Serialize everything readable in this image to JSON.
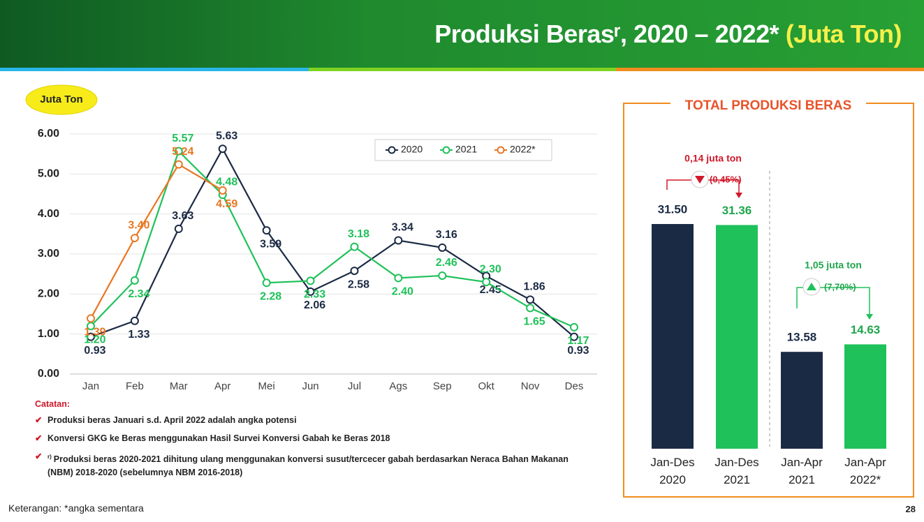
{
  "header": {
    "title": "Produksi Berasʳ, 2020 – 2022*",
    "unit": "(Juta Ton)"
  },
  "chart_data": [
    {
      "type": "line",
      "badge": "Juta Ton",
      "categories": [
        "Jan",
        "Feb",
        "Mar",
        "Apr",
        "Mei",
        "Jun",
        "Jul",
        "Ags",
        "Sep",
        "Okt",
        "Nov",
        "Des"
      ],
      "series": [
        {
          "name": "2020",
          "color": "#1b2a44",
          "values": [
            0.93,
            1.33,
            3.63,
            5.63,
            3.59,
            2.06,
            2.58,
            3.34,
            3.16,
            2.45,
            1.86,
            0.93
          ],
          "value_labels": [
            "0.93",
            "1.33",
            "3.63",
            "5.63",
            "3.59",
            "2.06",
            "2.58",
            "3.34",
            "3.16",
            "2.45",
            "1.86",
            "0.93"
          ]
        },
        {
          "name": "2021",
          "color": "#1fc15a",
          "values": [
            1.2,
            2.34,
            5.57,
            4.48,
            2.28,
            2.33,
            3.18,
            2.4,
            2.46,
            2.3,
            1.65,
            1.17
          ],
          "value_labels": [
            "1.20",
            "2.34",
            "5.57",
            "4.48",
            "2.28",
            "2.33",
            "3.18",
            "2.40",
            "2.46",
            "2.30",
            "1.65",
            "1.17"
          ]
        },
        {
          "name": "2022*",
          "color": "#e87722",
          "values": [
            1.39,
            3.4,
            5.24,
            4.59,
            null,
            null,
            null,
            null,
            null,
            null,
            null,
            null
          ],
          "value_labels": [
            "1.39",
            "3.40",
            "5.24",
            "4.59",
            null,
            null,
            null,
            null,
            null,
            null,
            null,
            null
          ]
        }
      ],
      "ylim": [
        0,
        6
      ],
      "yticks": [
        {
          "value": 0,
          "label": "0.00"
        },
        {
          "value": 1,
          "label": "1.00"
        },
        {
          "value": 2,
          "label": "2.00"
        },
        {
          "value": 3,
          "label": "3.00"
        },
        {
          "value": 4,
          "label": "4.00"
        },
        {
          "value": 5,
          "label": "5.00"
        },
        {
          "value": 6,
          "label": "6.00"
        }
      ],
      "grid": true
    },
    {
      "type": "bar",
      "title": "TOTAL PRODUKSI BERAS",
      "categories": [
        "Jan-Des 2020",
        "Jan-Des 2021",
        "Jan-Apr 2021",
        "Jan-Apr 2022*"
      ],
      "values": [
        31.5,
        31.36,
        13.58,
        14.63
      ],
      "value_labels": [
        "31.50",
        "31.36",
        "13.58",
        "14.63"
      ],
      "colors": [
        "#1b2a44",
        "#1fc15a",
        "#1b2a44",
        "#1fc15a"
      ],
      "annotations": [
        {
          "text": "0,14 juta ton",
          "change": "(0,45%)"
        },
        {
          "text": "1,05 juta ton",
          "change": "(7,70%)"
        }
      ]
    }
  ],
  "notes": {
    "title": "Catatan:",
    "items": [
      "Produksi beras Januari s.d. April 2022 adalah angka potensi",
      "Konversi GKG ke Beras menggunakan Hasil Survei Konversi Gabah ke Beras 2018",
      "Produksi beras 2020-2021 dihitung ulang menggunakan konversi susut/tercecer gabah berdasarkan Neraca Bahan Makanan (NBM) 2018-2020 (sebelumnya NBM 2016-2018)"
    ],
    "marker": "r)"
  },
  "footer": {
    "note": "Keterangan: *angka sementara",
    "page": "28"
  }
}
